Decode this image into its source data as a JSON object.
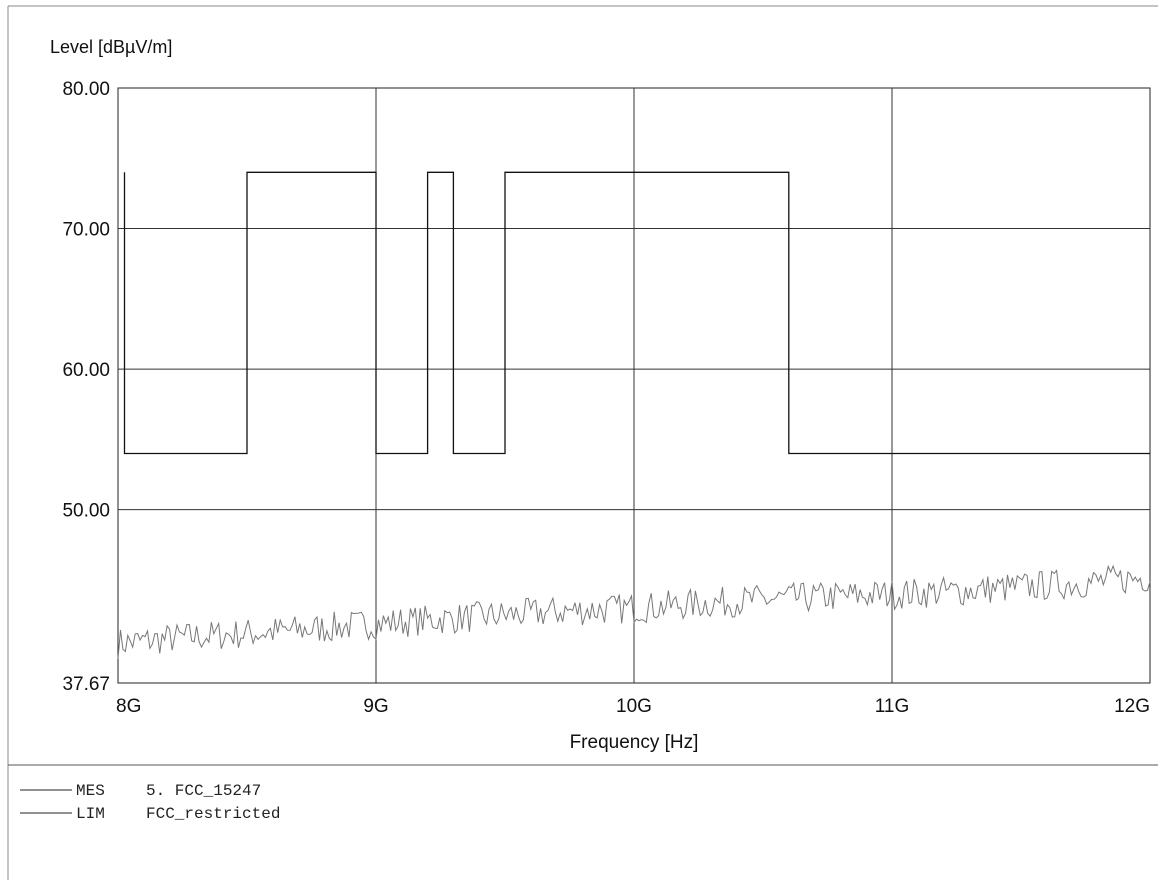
{
  "chart_data": {
    "type": "line",
    "ylabel": "Level [dBµV/m]",
    "xlabel": "Frequency [Hz]",
    "ylim": [
      37.67,
      80
    ],
    "xlim": [
      8,
      12
    ],
    "x_unit": "GHz",
    "y_ticks": [
      "80.00",
      "70.00",
      "60.00",
      "50.00",
      "37.67"
    ],
    "y_tick_values": [
      80,
      70,
      60,
      50,
      37.67
    ],
    "x_ticks": [
      "8G",
      "9G",
      "10G",
      "11G",
      "12G"
    ],
    "x_tick_values": [
      8,
      9,
      10,
      11,
      12
    ],
    "grid": true,
    "series": [
      {
        "name": "FCC_restricted",
        "legend_code": "LIM",
        "kind": "limit",
        "color": "#111111",
        "x": [
          8.025,
          8.025,
          8.5,
          8.5,
          9.0,
          9.0,
          9.2,
          9.2,
          9.3,
          9.3,
          9.5,
          9.5,
          10.6,
          10.6,
          12.0
        ],
        "values": [
          74,
          54,
          54,
          74,
          74,
          54,
          54,
          74,
          74,
          54,
          54,
          74,
          74,
          54,
          54
        ]
      },
      {
        "name": "5. FCC_15247",
        "legend_code": "MES",
        "kind": "measurement",
        "color": "#777777",
        "x": [
          8.0,
          8.25,
          8.5,
          8.75,
          9.0,
          9.25,
          9.5,
          9.75,
          10.0,
          10.25,
          10.5,
          10.75,
          11.0,
          11.25,
          11.5,
          11.75,
          12.0
        ],
        "values": [
          40.5,
          40.9,
          41.2,
          41.5,
          41.9,
          42.2,
          42.5,
          42.8,
          43.0,
          43.3,
          43.6,
          43.8,
          44.0,
          44.2,
          44.5,
          44.8,
          45.2
        ]
      }
    ]
  },
  "legend": [
    {
      "code": "MES",
      "name": "5. FCC_15247"
    },
    {
      "code": "LIM",
      "name": "FCC_restricted"
    }
  ]
}
